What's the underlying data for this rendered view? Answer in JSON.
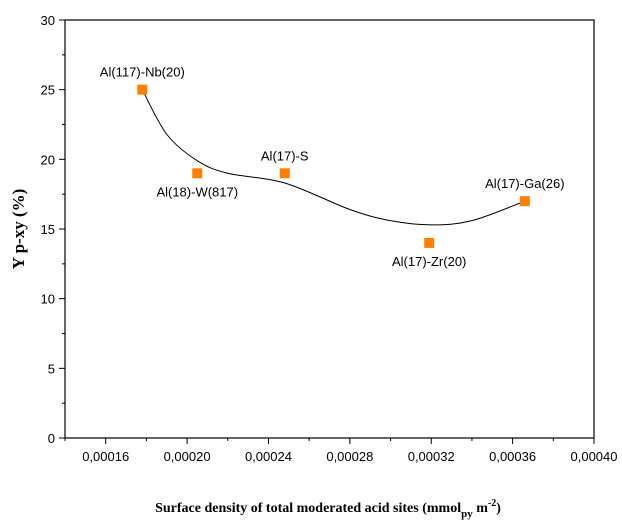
{
  "chart_data": {
    "type": "scatter",
    "xlabel": {
      "main": "Surface density of total moderated acid sites (mmol",
      "sub": "py",
      "unit": " m",
      "sup": "-2",
      "close": ")"
    },
    "ylabel": "Y p-xy (%)",
    "xlim": [
      0.00014,
      0.0004
    ],
    "ylim": [
      0,
      30
    ],
    "xticks": [
      "0,00016",
      "0,00020",
      "0,00024",
      "0,00028",
      "0,00032",
      "0,00036",
      "0,00040"
    ],
    "xtick_values": [
      0.00016,
      0.0002,
      0.00024,
      0.00028,
      0.00032,
      0.00036,
      0.0004
    ],
    "yticks": [
      "0",
      "5",
      "10",
      "15",
      "20",
      "25",
      "30"
    ],
    "ytick_values": [
      0,
      5,
      10,
      15,
      20,
      25,
      30
    ],
    "marker_color": "#ff8000",
    "series": [
      {
        "points": [
          {
            "x": 0.000178,
            "y": 25,
            "label": "Al(117)-Nb(20)",
            "label_pos": "above"
          },
          {
            "x": 0.000205,
            "y": 19,
            "label": "Al(18)-W(817)",
            "label_pos": "below"
          },
          {
            "x": 0.000248,
            "y": 19,
            "label": "Al(17)-S",
            "label_pos": "above"
          },
          {
            "x": 0.000319,
            "y": 14,
            "label": "Al(17)-Zr(20)",
            "label_pos": "below"
          },
          {
            "x": 0.000366,
            "y": 17,
            "label": "Al(17)-Ga(26)",
            "label_pos": "above"
          }
        ]
      }
    ],
    "fit_curve": {
      "x": [
        0.000178,
        0.00019,
        0.000205,
        0.00022,
        0.000248,
        0.00028,
        0.0003,
        0.00032,
        0.00034,
        0.000366
      ],
      "y": [
        25,
        21.8,
        19.9,
        19.0,
        18.3,
        16.4,
        15.6,
        15.3,
        15.6,
        17
      ]
    }
  }
}
